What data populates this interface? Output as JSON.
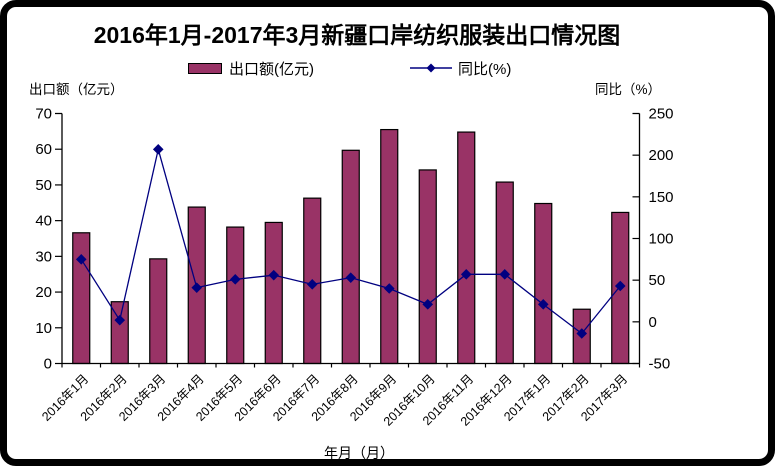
{
  "title": "2016年1月-2017年3月新疆口岸纺织服装出口情况图",
  "legend": {
    "bars_label": "出口额(亿元)",
    "line_label": "同比(%)"
  },
  "left_axis_caption": "出口额（亿元）",
  "right_axis_caption": "同比（%）",
  "x_axis_title": "年月（月）",
  "colors": {
    "bar_fill": "#993366",
    "bar_border": "#000000",
    "line": "#000080",
    "axis": "#000000",
    "frame": "#000000",
    "background": "#ffffff"
  },
  "chart_data": {
    "type": "bar",
    "subtype": "bar+line combo, dual axis",
    "title": "2016年1月-2017年3月新疆口岸纺织服装出口情况图",
    "xlabel": "年月（月）",
    "ylabel_left": "出口额（亿元）",
    "ylabel_right": "同比（%）",
    "grid": false,
    "legend_position": "top",
    "categories": [
      "2016年1月",
      "2016年2月",
      "2016年3月",
      "2016年4月",
      "2016年5月",
      "2016年6月",
      "2016年7月",
      "2016年8月",
      "2016年9月",
      "2016年10月",
      "2016年11月",
      "2016年12月",
      "2017年1月",
      "2017年2月",
      "2017年3月"
    ],
    "series": [
      {
        "name": "出口额(亿元)",
        "type": "bar",
        "axis": "left",
        "values": [
          36.6,
          17.3,
          29.3,
          43.8,
          38.2,
          39.5,
          46.3,
          59.7,
          65.5,
          54.2,
          64.8,
          50.8,
          44.8,
          15.2,
          42.3
        ]
      },
      {
        "name": "同比(%)",
        "type": "line",
        "axis": "right",
        "values": [
          75,
          2,
          207,
          41,
          51,
          56,
          45,
          53,
          40,
          21,
          57,
          57,
          21,
          -14,
          43
        ]
      }
    ],
    "left_axis": {
      "min": 0,
      "max": 70,
      "step": 10,
      "ticks": [
        0,
        10,
        20,
        30,
        40,
        50,
        60,
        70
      ]
    },
    "right_axis": {
      "min": -50,
      "max": 250,
      "step": 50,
      "ticks": [
        -50,
        0,
        50,
        100,
        150,
        200,
        250
      ]
    }
  }
}
